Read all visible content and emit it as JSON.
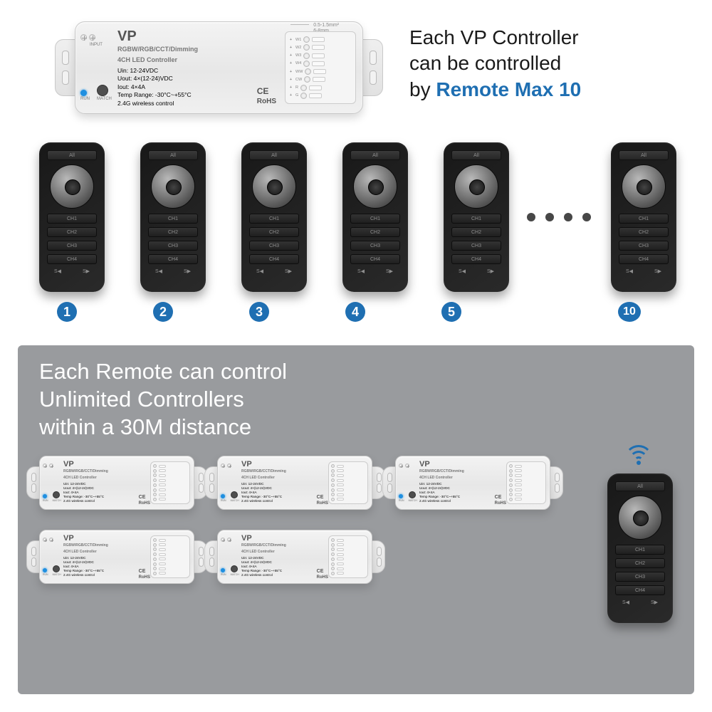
{
  "colors": {
    "accent": "#1f6fb2",
    "panel_grey": "#999b9e",
    "remote_body": "#1d1d1d",
    "led_blue": "#1f8fe0",
    "text_dark": "#1a1a1a",
    "text_white": "#ffffff"
  },
  "top_caption": {
    "line1": "Each VP Controller",
    "line2": "can be controlled",
    "line3_prefix": "by ",
    "line3_accent": "Remote Max 10"
  },
  "controller": {
    "model": "VP",
    "subtitle1": "RGBW/RGB/CCT/Dimming",
    "subtitle2": "4CH LED Controller",
    "spec1": "Uin: 12-24VDC",
    "spec2": "Uout: 4×(12-24)VDC",
    "spec3": "Iout: 4×4A",
    "spec4": "Temp Range: -30°C~+55°C",
    "spec5": "2.4G wireless control",
    "input_label": "INPUT",
    "input_v": "12-24VDC",
    "run_label": "RUN",
    "match_label": "MATCH",
    "ce": "CE",
    "rohs": "RoHS",
    "wire1": "0.5-1.5mm²",
    "wire2": "6-8mm",
    "output_label": "OUTPUT",
    "out_rows": [
      {
        "label": "W1",
        "plus": "+"
      },
      {
        "label": "W2",
        "plus": "+"
      },
      {
        "label": "W3",
        "plus": "+"
      },
      {
        "label": "W4",
        "plus": "+"
      },
      {
        "label": "WW",
        "plus": "+"
      },
      {
        "label": "CW",
        "plus": "+"
      },
      {
        "label": "R",
        "plus": "+"
      },
      {
        "label": "G",
        "plus": "+"
      },
      {
        "label": "B",
        "plus": "+"
      },
      {
        "label": "W",
        "plus": "+"
      }
    ]
  },
  "remote": {
    "all": "All",
    "ch1": "CH1",
    "ch2": "CH2",
    "ch3": "CH3",
    "ch4": "CH4",
    "s_left": "S◀",
    "s_right": "S▶"
  },
  "remote_numbers_visible": [
    "1",
    "2",
    "3",
    "4",
    "5"
  ],
  "remote_number_last": "10",
  "ellipsis_dot_count": 4,
  "bottom_caption": {
    "line1": "Each Remote can control",
    "line2": "Unlimited Controllers",
    "line3": "within a 30M distance"
  },
  "bottom_controller_count": 5
}
